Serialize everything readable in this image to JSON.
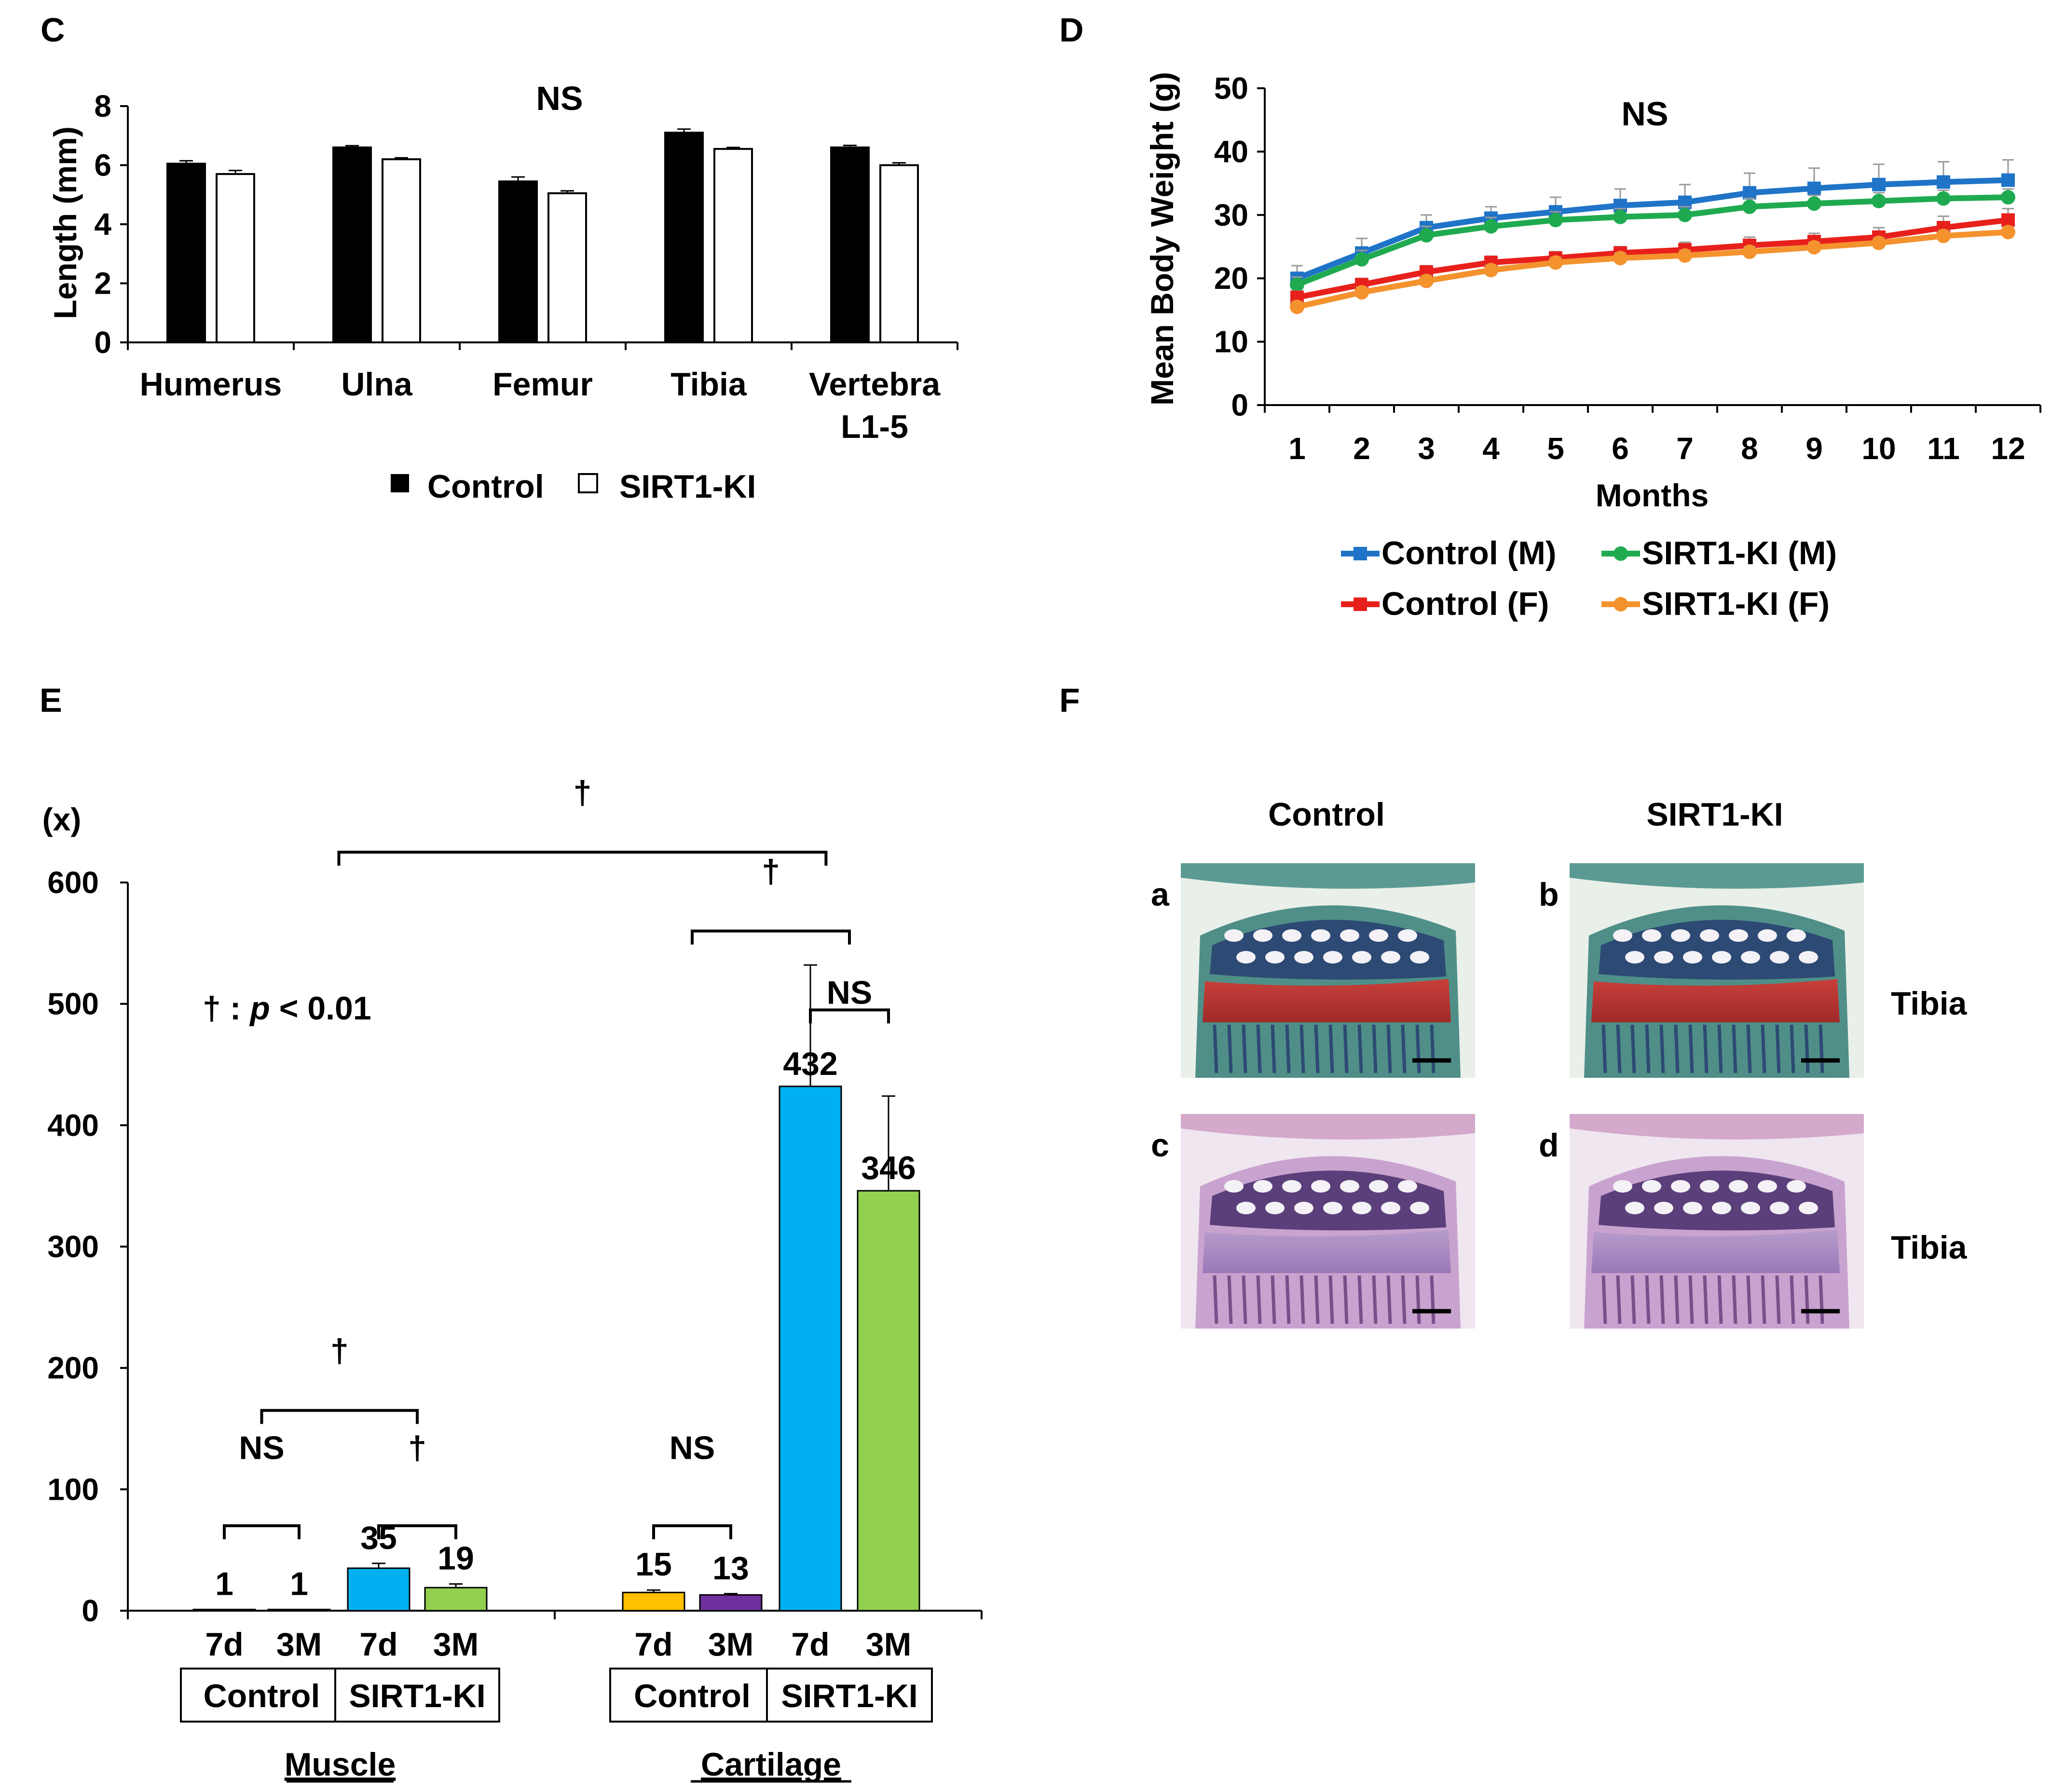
{
  "panels": {
    "c": {
      "letter": "C"
    },
    "d": {
      "letter": "D"
    },
    "e": {
      "letter": "E"
    },
    "f": {
      "letter": "F"
    }
  },
  "chart_data": [
    {
      "id": "panel-c",
      "type": "bar",
      "title": "NS",
      "xlabel": "",
      "ylabel": "Length (mm)",
      "ylim": [
        0,
        8
      ],
      "yticks": [
        0,
        2,
        4,
        6,
        8
      ],
      "categories": [
        "Humerus",
        "Ulna",
        "Femur",
        "Tibia",
        "Vertebra L1-5"
      ],
      "category_lines": [
        [
          "Humerus"
        ],
        [
          "Ulna"
        ],
        [
          "Femur"
        ],
        [
          "Tibia"
        ],
        [
          "Vertebra",
          "L1-5"
        ]
      ],
      "series": [
        {
          "name": "Control",
          "color": "#000000",
          "values": [
            6.05,
            6.6,
            5.45,
            7.1,
            6.6
          ],
          "errors": [
            0.1,
            0.06,
            0.15,
            0.12,
            0.07
          ]
        },
        {
          "name": "SIRT1-KI",
          "color": "#ffffff",
          "values": [
            5.7,
            6.2,
            5.05,
            6.55,
            6.0
          ],
          "errors": [
            0.12,
            0.05,
            0.08,
            0.05,
            0.08
          ]
        }
      ],
      "legend": {
        "position": "bottom",
        "items": [
          "Control",
          "SIRT1-KI"
        ]
      }
    },
    {
      "id": "panel-d",
      "type": "line",
      "title": "NS",
      "xlabel": "Months",
      "ylabel": "Mean Body Weight (g)",
      "ylim": [
        0,
        50
      ],
      "yticks": [
        0,
        10,
        20,
        30,
        40,
        50
      ],
      "x": [
        1,
        2,
        3,
        4,
        5,
        6,
        7,
        8,
        9,
        10,
        11,
        12
      ],
      "series": [
        {
          "name": "Control (M)",
          "color": "#1f74c8",
          "marker": "square",
          "values": [
            20,
            24,
            28,
            29.5,
            30.5,
            31.5,
            32,
            33.5,
            34.2,
            34.8,
            35.2,
            35.5
          ],
          "errors": [
            2,
            2.3,
            2,
            1.8,
            2.3,
            2.6,
            2.8,
            3.1,
            3.2,
            3.2,
            3.2,
            3.2
          ]
        },
        {
          "name": "SIRT1-KI (M)",
          "color": "#1faa50",
          "marker": "circle",
          "values": [
            19,
            23,
            26.8,
            28.2,
            29.2,
            29.7,
            30,
            31.3,
            31.8,
            32.2,
            32.6,
            32.8
          ],
          "errors": [
            1.2,
            1.4,
            1.4,
            1.4,
            1.3,
            1.3,
            1.3,
            1.3,
            1.3,
            1.3,
            1.3,
            1.3
          ]
        },
        {
          "name": "Control (F)",
          "color": "#e8201c",
          "marker": "square",
          "values": [
            17,
            19,
            21,
            22.5,
            23.2,
            24,
            24.5,
            25.2,
            25.8,
            26.5,
            28,
            29.2
          ],
          "errors": [
            1,
            1,
            1,
            1,
            1,
            1,
            1.2,
            1.3,
            1.3,
            1.5,
            1.8,
            1.8
          ]
        },
        {
          "name": "SIRT1-KI (F)",
          "color": "#f4922e",
          "marker": "circle",
          "values": [
            15.5,
            17.8,
            19.6,
            21.3,
            22.5,
            23.2,
            23.6,
            24.2,
            24.9,
            25.6,
            26.7,
            27.3
          ],
          "errors": [
            0.8,
            0.8,
            0.8,
            0.8,
            0.8,
            0.8,
            0.8,
            0.8,
            0.8,
            0.8,
            0.8,
            0.8
          ]
        }
      ],
      "legend": {
        "position": "bottom",
        "items": [
          "Control (M)",
          "SIRT1-KI (M)",
          "Control (F)",
          "SIRT1-KI (F)"
        ]
      }
    },
    {
      "id": "panel-e",
      "type": "bar",
      "ylabel": "(x)",
      "ylim": [
        0,
        600
      ],
      "yticks": [
        0,
        100,
        200,
        300,
        400,
        500,
        600
      ],
      "bars": [
        {
          "tissue": "Muscle",
          "group": "Control",
          "time": "7d",
          "value": 1,
          "label": "1",
          "error": 0,
          "color": "#ffffff"
        },
        {
          "tissue": "Muscle",
          "group": "Control",
          "time": "3M",
          "value": 1,
          "label": "1",
          "error": 0,
          "color": "#ffffff"
        },
        {
          "tissue": "Muscle",
          "group": "SIRT1-KI",
          "time": "7d",
          "value": 35,
          "label": "35",
          "error": 4,
          "color": "#00b0f0"
        },
        {
          "tissue": "Muscle",
          "group": "SIRT1-KI",
          "time": "3M",
          "value": 19,
          "label": "19",
          "error": 3,
          "color": "#92d050"
        },
        {
          "tissue": "Cartilage",
          "group": "Control",
          "time": "7d",
          "value": 15,
          "label": "15",
          "error": 2,
          "color": "#ffc000"
        },
        {
          "tissue": "Cartilage",
          "group": "Control",
          "time": "3M",
          "value": 13,
          "label": "13",
          "error": 1,
          "color": "#7030a0"
        },
        {
          "tissue": "Cartilage",
          "group": "SIRT1-KI",
          "time": "7d",
          "value": 432,
          "label": "432",
          "error": 100,
          "color": "#00b0f0"
        },
        {
          "tissue": "Cartilage",
          "group": "SIRT1-KI",
          "time": "3M",
          "value": 346,
          "label": "346",
          "error": 78,
          "color": "#92d050"
        }
      ],
      "group_boxes": [
        {
          "label": "Control",
          "from": 0,
          "to": 1
        },
        {
          "label": "SIRT1-KI",
          "from": 2,
          "to": 3
        },
        {
          "label": "Control",
          "from": 4,
          "to": 5
        },
        {
          "label": "SIRT1-KI",
          "from": 6,
          "to": 7
        }
      ],
      "tissues": [
        {
          "label": "Muscle",
          "from": 0,
          "to": 3
        },
        {
          "label": "Cartilage",
          "from": 4,
          "to": 7
        }
      ],
      "annotation": {
        "symbol": "†",
        "text": "p",
        "text_rest": "< 0.01"
      },
      "comparisons": [
        {
          "from": 0,
          "to": 1,
          "label": "NS",
          "level": 70,
          "label_level": 125
        },
        {
          "from": 2,
          "to": 3,
          "label": "†",
          "level": 70,
          "label_level": 125
        },
        {
          "from": 0.5,
          "to": 2.5,
          "label": "†",
          "level": 165,
          "label_level": 205
        },
        {
          "from": 4,
          "to": 5,
          "label": "NS",
          "level": 70,
          "label_level": 125
        },
        {
          "from": 6,
          "to": 7,
          "label": "NS",
          "level": 495,
          "label_level": 500
        },
        {
          "from": 4.5,
          "to": 6.5,
          "label": "†",
          "level": 560,
          "label_level": 600
        },
        {
          "from": 1.5,
          "to": 6.2,
          "label": "†",
          "level": 625,
          "label_level": 665
        }
      ]
    }
  ],
  "histology": {
    "columns": [
      "Control",
      "SIRT1-KI"
    ],
    "images": [
      {
        "letter": "a",
        "stain": "safranin"
      },
      {
        "letter": "b",
        "stain": "safranin"
      },
      {
        "letter": "c",
        "stain": "he"
      },
      {
        "letter": "d",
        "stain": "he"
      }
    ],
    "row_labels": [
      "Tibia",
      "Tibia"
    ]
  }
}
